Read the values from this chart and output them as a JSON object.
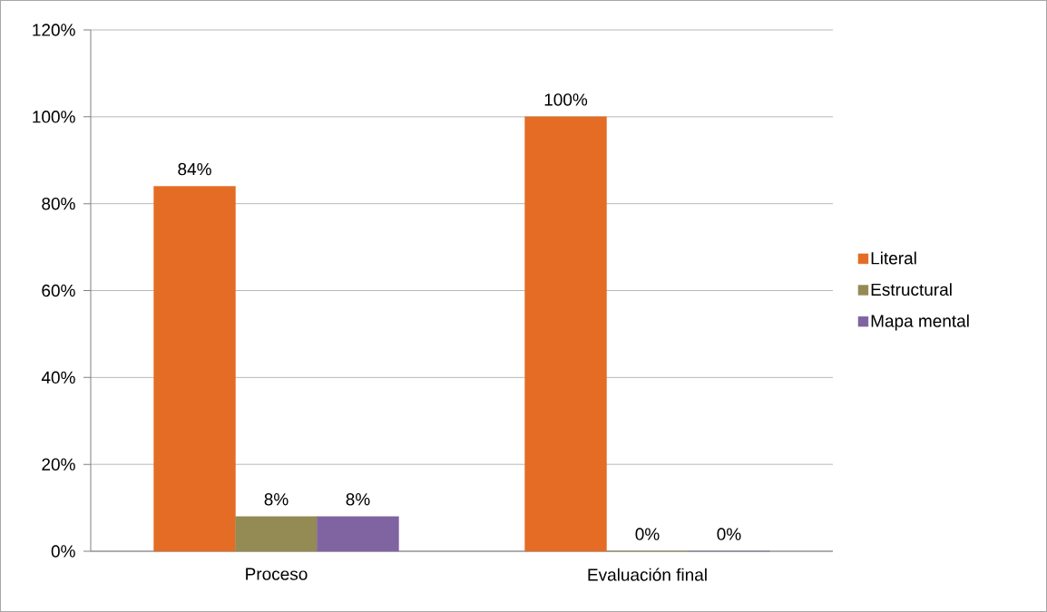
{
  "chart_data": {
    "type": "bar",
    "categories": [
      "Proceso",
      "Evaluación final"
    ],
    "series": [
      {
        "name": "Literal",
        "color": "#e46c24",
        "values": [
          84,
          100
        ],
        "value_labels": [
          "84%",
          "100%"
        ]
      },
      {
        "name": "Estructural",
        "color": "#948a54",
        "values": [
          8,
          0
        ],
        "value_labels": [
          "8%",
          "0%"
        ]
      },
      {
        "name": "Mapa mental",
        "color": "#8064a2",
        "values": [
          8,
          0
        ],
        "value_labels": [
          "8%",
          "0%"
        ]
      }
    ],
    "ylim": [
      0,
      120
    ],
    "yticks": [
      {
        "value": 0,
        "label": "0%"
      },
      {
        "value": 20,
        "label": "20%"
      },
      {
        "value": 40,
        "label": "40%"
      },
      {
        "value": 60,
        "label": "60%"
      },
      {
        "value": 80,
        "label": "80%"
      },
      {
        "value": 100,
        "label": "100%"
      },
      {
        "value": 120,
        "label": "120%"
      }
    ],
    "grid": "y",
    "legend": "right"
  }
}
